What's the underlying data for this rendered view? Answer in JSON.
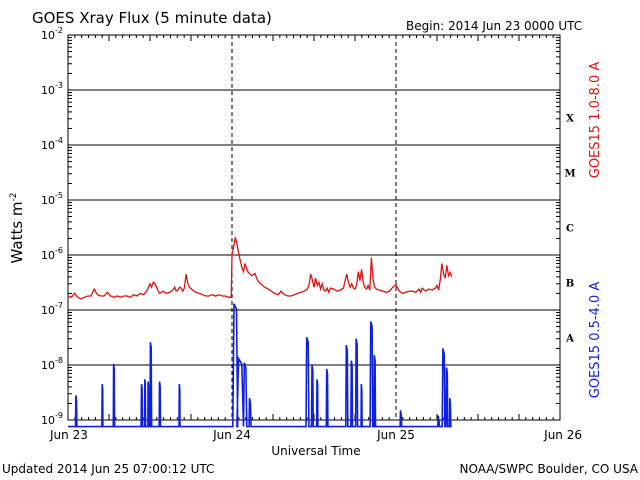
{
  "header": {
    "title": "GOES Xray Flux (5 minute data)",
    "begin": "Begin:  2014 Jun 23 0000 UTC"
  },
  "footer": {
    "updated": "Updated 2014 Jun 25 07:00:12 UTC",
    "credit": "NOAA/SWPC Boulder, CO USA"
  },
  "colors": {
    "long_channel": "#e01010",
    "short_channel": "#1020e0",
    "grid": "#000000"
  },
  "chart_data": {
    "type": "line",
    "title": "GOES Xray Flux (5 minute data)",
    "xlabel": "Universal Time",
    "ylabel": "Watts m",
    "ylabel_superscript": "-2",
    "y_scale": "log",
    "ylim": [
      1e-09,
      0.01
    ],
    "xlim": [
      "2014-06-23",
      "2014-06-26"
    ],
    "x_ticks": [
      "Jun 23",
      "Jun 24",
      "Jun 25",
      "Jun 26"
    ],
    "y_ticks": [
      {
        "base": "10",
        "exp": "-2"
      },
      {
        "base": "10",
        "exp": "-3"
      },
      {
        "base": "10",
        "exp": "-4"
      },
      {
        "base": "10",
        "exp": "-5"
      },
      {
        "base": "10",
        "exp": "-6"
      },
      {
        "base": "10",
        "exp": "-7"
      },
      {
        "base": "10",
        "exp": "-8"
      },
      {
        "base": "10",
        "exp": "-9"
      }
    ],
    "flare_classes": [
      "X",
      "M",
      "C",
      "B",
      "A"
    ],
    "grid": true,
    "series": [
      {
        "name": "GOES15 1.0-8.0 A",
        "color": "#e01010",
        "points": [
          [
            0.0,
            1.8e-07
          ],
          [
            0.02,
            1.7e-07
          ],
          [
            0.04,
            2e-07
          ],
          [
            0.06,
            1.7e-07
          ],
          [
            0.08,
            1.6e-07
          ],
          [
            0.1,
            1.7e-07
          ],
          [
            0.12,
            1.8e-07
          ],
          [
            0.14,
            1.8e-07
          ],
          [
            0.16,
            2.4e-07
          ],
          [
            0.17,
            2.1e-07
          ],
          [
            0.18,
            1.9e-07
          ],
          [
            0.2,
            1.8e-07
          ],
          [
            0.22,
            1.8e-07
          ],
          [
            0.24,
            2.1e-07
          ],
          [
            0.26,
            1.8e-07
          ],
          [
            0.28,
            1.7e-07
          ],
          [
            0.3,
            1.8e-07
          ],
          [
            0.32,
            1.7e-07
          ],
          [
            0.34,
            1.8e-07
          ],
          [
            0.36,
            1.8e-07
          ],
          [
            0.38,
            1.7e-07
          ],
          [
            0.4,
            1.9e-07
          ],
          [
            0.42,
            1.8e-07
          ],
          [
            0.44,
            2e-07
          ],
          [
            0.46,
            1.9e-07
          ],
          [
            0.48,
            2.2e-07
          ],
          [
            0.5,
            3e-07
          ],
          [
            0.51,
            2.6e-07
          ],
          [
            0.52,
            3.2e-07
          ],
          [
            0.53,
            3e-07
          ],
          [
            0.54,
            2.6e-07
          ],
          [
            0.55,
            2.2e-07
          ],
          [
            0.56,
            2e-07
          ],
          [
            0.58,
            2.2e-07
          ],
          [
            0.6,
            2e-07
          ],
          [
            0.62,
            2.1e-07
          ],
          [
            0.64,
            2.3e-07
          ],
          [
            0.65,
            2.6e-07
          ],
          [
            0.66,
            2.2e-07
          ],
          [
            0.67,
            2.3e-07
          ],
          [
            0.68,
            2.6e-07
          ],
          [
            0.69,
            2.5e-07
          ],
          [
            0.7,
            2.2e-07
          ],
          [
            0.71,
            2.5e-07
          ],
          [
            0.72,
            4.5e-07
          ],
          [
            0.73,
            3.1e-07
          ],
          [
            0.74,
            2.6e-07
          ],
          [
            0.76,
            2.3e-07
          ],
          [
            0.78,
            2.1e-07
          ],
          [
            0.8,
            2e-07
          ],
          [
            0.82,
            1.9e-07
          ],
          [
            0.84,
            1.8e-07
          ],
          [
            0.86,
            1.8e-07
          ],
          [
            0.88,
            1.9e-07
          ],
          [
            0.9,
            1.8e-07
          ],
          [
            0.92,
            1.9e-07
          ],
          [
            0.94,
            1.8e-07
          ],
          [
            0.96,
            1.8e-07
          ],
          [
            0.98,
            1.7e-07
          ],
          [
            0.995,
            1.7e-07
          ],
          [
            1.0,
            1e-06
          ],
          [
            1.01,
            1.4e-06
          ],
          [
            1.02,
            2.1e-06
          ],
          [
            1.03,
            1.6e-06
          ],
          [
            1.04,
            1.1e-06
          ],
          [
            1.05,
            8e-07
          ],
          [
            1.06,
            6e-07
          ],
          [
            1.07,
            5e-07
          ],
          [
            1.08,
            7e-07
          ],
          [
            1.09,
            5.5e-07
          ],
          [
            1.1,
            4.8e-07
          ],
          [
            1.12,
            4.2e-07
          ],
          [
            1.14,
            4.6e-07
          ],
          [
            1.15,
            3.8e-07
          ],
          [
            1.16,
            3.3e-07
          ],
          [
            1.18,
            2.9e-07
          ],
          [
            1.2,
            2.6e-07
          ],
          [
            1.22,
            2.4e-07
          ],
          [
            1.24,
            2.2e-07
          ],
          [
            1.26,
            2e-07
          ],
          [
            1.28,
            1.9e-07
          ],
          [
            1.3,
            2.2e-07
          ],
          [
            1.31,
            2e-07
          ],
          [
            1.32,
            1.9e-07
          ],
          [
            1.34,
            1.8e-07
          ],
          [
            1.36,
            1.8e-07
          ],
          [
            1.38,
            1.9e-07
          ],
          [
            1.4,
            2e-07
          ],
          [
            1.42,
            2.1e-07
          ],
          [
            1.44,
            2.2e-07
          ],
          [
            1.46,
            2.4e-07
          ],
          [
            1.47,
            2.9e-07
          ],
          [
            1.48,
            4.5e-07
          ],
          [
            1.49,
            3.5e-07
          ],
          [
            1.5,
            2.6e-07
          ],
          [
            1.51,
            3.8e-07
          ],
          [
            1.52,
            2.8e-07
          ],
          [
            1.53,
            3.2e-07
          ],
          [
            1.54,
            2.4e-07
          ],
          [
            1.55,
            3e-07
          ],
          [
            1.56,
            2.3e-07
          ],
          [
            1.57,
            2.2e-07
          ],
          [
            1.58,
            2.5e-07
          ],
          [
            1.59,
            2.1e-07
          ],
          [
            1.6,
            2.5e-07
          ],
          [
            1.62,
            2.4e-07
          ],
          [
            1.64,
            2.2e-07
          ],
          [
            1.66,
            2.3e-07
          ],
          [
            1.68,
            2.5e-07
          ],
          [
            1.69,
            3.5e-07
          ],
          [
            1.7,
            4.5e-07
          ],
          [
            1.71,
            3.2e-07
          ],
          [
            1.72,
            2.6e-07
          ],
          [
            1.73,
            3e-07
          ],
          [
            1.74,
            2.5e-07
          ],
          [
            1.75,
            2.4e-07
          ],
          [
            1.76,
            2.8e-07
          ],
          [
            1.77,
            5e-07
          ],
          [
            1.78,
            3.4e-07
          ],
          [
            1.79,
            5.5e-07
          ],
          [
            1.8,
            3.2e-07
          ],
          [
            1.81,
            2.6e-07
          ],
          [
            1.82,
            2.4e-07
          ],
          [
            1.83,
            2.8e-07
          ],
          [
            1.84,
            2.3e-07
          ],
          [
            1.85,
            9e-07
          ],
          [
            1.86,
            3.6e-07
          ],
          [
            1.87,
            2.6e-07
          ],
          [
            1.88,
            2.4e-07
          ],
          [
            1.9,
            2.3e-07
          ],
          [
            1.92,
            2.2e-07
          ],
          [
            1.94,
            2.1e-07
          ],
          [
            1.96,
            2.2e-07
          ],
          [
            1.98,
            2.6e-07
          ],
          [
            2.0,
            2.9e-07
          ],
          [
            2.01,
            2.5e-07
          ],
          [
            2.02,
            2.2e-07
          ],
          [
            2.04,
            2e-07
          ],
          [
            2.06,
            2.1e-07
          ],
          [
            2.08,
            2.2e-07
          ],
          [
            2.1,
            2.2e-07
          ],
          [
            2.12,
            2.1e-07
          ],
          [
            2.14,
            2.4e-07
          ],
          [
            2.15,
            2.1e-07
          ],
          [
            2.16,
            2.5e-07
          ],
          [
            2.18,
            2.2e-07
          ],
          [
            2.2,
            2.4e-07
          ],
          [
            2.22,
            2.3e-07
          ],
          [
            2.24,
            2.5e-07
          ],
          [
            2.25,
            2.8e-07
          ],
          [
            2.26,
            2.3e-07
          ],
          [
            2.27,
            3.6e-07
          ],
          [
            2.28,
            7e-07
          ],
          [
            2.29,
            4.5e-07
          ],
          [
            2.3,
            3.8e-07
          ],
          [
            2.31,
            6.5e-07
          ],
          [
            2.32,
            4.2e-07
          ],
          [
            2.33,
            4.8e-07
          ],
          [
            2.34,
            4e-07
          ]
        ]
      },
      {
        "name": "GOES15 0.5-4.0 A",
        "color": "#1020e0",
        "baseline": 7.6e-10,
        "spikes": [
          {
            "x": 0.05,
            "peak": 2.8e-09,
            "w": 0.008
          },
          {
            "x": 0.21,
            "peak": 4.5e-09,
            "w": 0.006
          },
          {
            "x": 0.28,
            "peak": 1.05e-08,
            "w": 0.008
          },
          {
            "x": 0.45,
            "peak": 4.5e-09,
            "w": 0.008
          },
          {
            "x": 0.47,
            "peak": 5.5e-09,
            "w": 0.006
          },
          {
            "x": 0.49,
            "peak": 5e-09,
            "w": 0.006
          },
          {
            "x": 0.505,
            "peak": 2.6e-08,
            "w": 0.01
          },
          {
            "x": 0.56,
            "peak": 5e-09,
            "w": 0.008
          },
          {
            "x": 0.68,
            "peak": 4.5e-09,
            "w": 0.006
          },
          {
            "x": 1.02,
            "peak": 1.3e-07,
            "w": 0.03
          },
          {
            "x": 1.05,
            "peak": 1.3e-08,
            "w": 0.04
          },
          {
            "x": 1.08,
            "peak": 1.1e-08,
            "w": 0.02
          },
          {
            "x": 1.11,
            "peak": 2.5e-09,
            "w": 0.012
          },
          {
            "x": 1.46,
            "peak": 3.2e-08,
            "w": 0.018
          },
          {
            "x": 1.49,
            "peak": 1e-08,
            "w": 0.01
          },
          {
            "x": 1.52,
            "peak": 5.5e-09,
            "w": 0.008
          },
          {
            "x": 1.58,
            "peak": 8.5e-09,
            "w": 0.01
          },
          {
            "x": 1.7,
            "peak": 2.3e-08,
            "w": 0.012
          },
          {
            "x": 1.73,
            "peak": 1.2e-08,
            "w": 0.01
          },
          {
            "x": 1.76,
            "peak": 3e-08,
            "w": 0.012
          },
          {
            "x": 1.79,
            "peak": 4.5e-09,
            "w": 0.006
          },
          {
            "x": 1.85,
            "peak": 6.2e-08,
            "w": 0.016
          },
          {
            "x": 1.87,
            "peak": 1.5e-08,
            "w": 0.01
          },
          {
            "x": 2.03,
            "peak": 1.5e-09,
            "w": 0.01
          },
          {
            "x": 2.26,
            "peak": 1.2e-09,
            "w": 0.01
          },
          {
            "x": 2.29,
            "peak": 2e-08,
            "w": 0.016
          },
          {
            "x": 2.31,
            "peak": 9e-09,
            "w": 0.01
          },
          {
            "x": 2.33,
            "peak": 2.5e-09,
            "w": 0.008
          }
        ]
      }
    ]
  }
}
